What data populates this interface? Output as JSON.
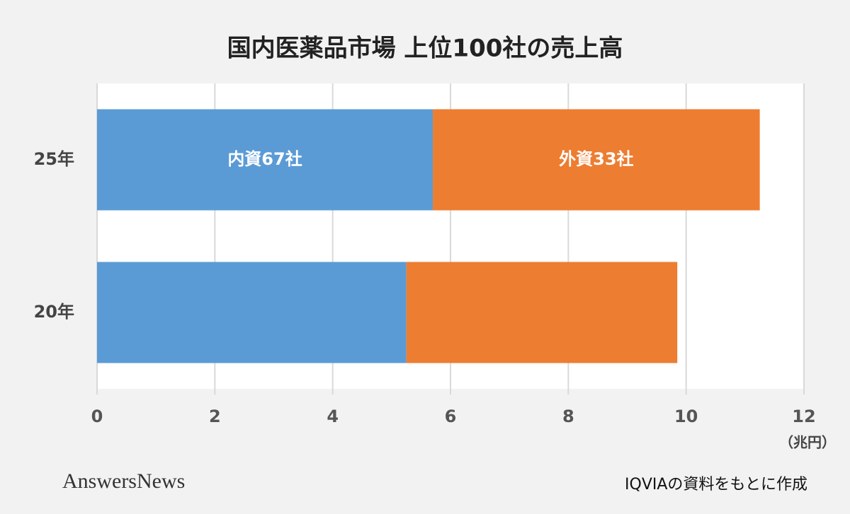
{
  "chart_data": {
    "type": "stacked-bar-horizontal",
    "title": "国内医薬品市場 上位100社の売上高",
    "categories": [
      "25年",
      "20年"
    ],
    "series": [
      {
        "name": "内資67社",
        "color": "#5b9bd5",
        "values": [
          5.7,
          5.25
        ]
      },
      {
        "name": "外資33社",
        "color": "#ed7d31",
        "values": [
          5.55,
          4.6
        ]
      }
    ],
    "xlim": [
      0,
      12
    ],
    "xticks": [
      0,
      2,
      4,
      6,
      8,
      10,
      12
    ],
    "x_unit": "（兆円）",
    "grid": true,
    "source": "IQVIAの資料をもとに作成",
    "logo": "AnswersNews"
  }
}
